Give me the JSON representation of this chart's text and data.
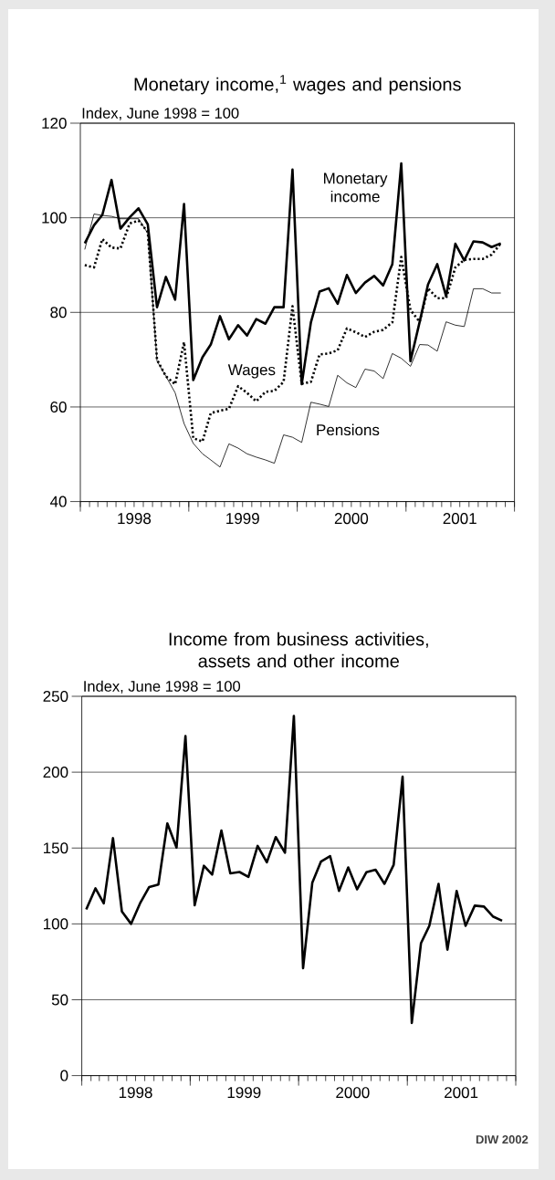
{
  "chart_data": [
    {
      "type": "line",
      "title": "Monetary income,$^{1}$ wages and pensions",
      "ylabel": "Index, June 1998 = 100",
      "x": [
        "1998-01-16",
        "1998-02-16",
        "1998-03-16",
        "1998-04-16",
        "1998-05-16",
        "1998-06-16",
        "1998-07-16",
        "1998-08-16",
        "1998-09-16",
        "1998-10-16",
        "1998-11-16",
        "1998-12-16",
        "1999-01-16",
        "1999-02-16",
        "1999-03-16",
        "1999-04-16",
        "1999-05-16",
        "1999-06-16",
        "1999-07-16",
        "1999-08-16",
        "1999-09-16",
        "1999-10-16",
        "1999-11-16",
        "1999-12-16",
        "2000-01-16",
        "2000-02-16",
        "2000-03-16",
        "2000-04-16",
        "2000-05-16",
        "2000-06-16",
        "2000-07-16",
        "2000-08-16",
        "2000-09-16",
        "2000-10-16",
        "2000-11-16",
        "2000-12-16",
        "2001-01-16",
        "2001-02-16",
        "2001-03-16",
        "2001-04-16",
        "2001-05-16",
        "2001-06-16",
        "2001-07-16",
        "2001-08-16",
        "2001-09-16",
        "2001-10-16",
        "2001-11-16"
      ],
      "series": [
        {
          "name": "Monetary income",
          "color": "#000000",
          "line_style": "solid",
          "values": [
            94.6,
            98.4,
            100.6,
            108,
            97.7,
            100.1,
            102,
            98.6,
            81.1,
            87.5,
            82.7,
            102.9,
            65.7,
            70.5,
            73.2,
            79.2,
            74.3,
            77.3,
            75.1,
            78.6,
            77.6,
            81.1,
            81.1,
            110.2,
            64.8,
            77.9,
            84.4,
            85.1,
            81.8,
            87.9,
            84.1,
            86.3,
            87.7,
            85.7,
            90.2,
            111.5,
            69.7,
            78,
            85.9,
            90.2,
            83.4,
            94.5,
            91,
            95,
            94.8,
            93.8,
            94.6
          ]
        },
        {
          "name": "Wages",
          "color": "#000000",
          "line_style": "dotted",
          "values": [
            90,
            89.5,
            95.5,
            93.7,
            93.5,
            98.8,
            99.4,
            97,
            70,
            66.5,
            64.8,
            73.7,
            53.4,
            52.7,
            58.7,
            59.2,
            59.6,
            64.4,
            63,
            61.2,
            63.2,
            63.4,
            65.3,
            81.3,
            64.9,
            65.3,
            71.1,
            71.3,
            72,
            76.6,
            75.8,
            74.8,
            75.9,
            76.3,
            77.9,
            91.7,
            80.5,
            78,
            85.1,
            83,
            83,
            89.5,
            91.1,
            91.3,
            91.3,
            92.2,
            94.6
          ]
        },
        {
          "name": "Pensions",
          "color": "#000000",
          "line_style": "solid",
          "values": [
            93.3,
            100.8,
            100.5,
            100.3,
            99.8,
            99.8,
            99.8,
            96.7,
            69.7,
            66.5,
            63,
            56.5,
            52.3,
            50.1,
            48.8,
            47.3,
            52.2,
            51.3,
            50.1,
            49.4,
            48.8,
            48.1,
            54.1,
            53.6,
            52.5,
            61,
            60.6,
            60.1,
            66.7,
            65.1,
            64.1,
            68,
            67.6,
            66,
            71.3,
            70.3,
            68.6,
            73.2,
            73.1,
            71.8,
            78,
            77.3,
            77,
            85,
            85,
            84.1,
            84.1
          ]
        }
      ],
      "xlim": [
        "1998-01-01",
        "2002-01-01"
      ],
      "xticks": [
        {
          "value": "1998-01-01",
          "label": null
        },
        {
          "value": "1998-07-01",
          "label": "1998"
        },
        {
          "value": "1999-01-01",
          "label": null
        },
        {
          "value": "1999-07-01",
          "label": "1999"
        },
        {
          "value": "2000-01-01",
          "label": null
        },
        {
          "value": "2000-07-01",
          "label": "2000"
        },
        {
          "value": "2001-01-01",
          "label": null
        },
        {
          "value": "2001-07-01",
          "label": "2001"
        },
        {
          "value": "2002-01-01",
          "label": null
        }
      ],
      "ylim": [
        40,
        120
      ],
      "yticks": [
        40,
        60,
        80,
        100,
        120
      ],
      "grid": "y"
    },
    {
      "type": "line",
      "title": "Income from business activities, assets and other income",
      "ylabel": "Index, June 1998 = 100",
      "x": [
        "1998-01-16",
        "1998-02-16",
        "1998-03-16",
        "1998-04-16",
        "1998-05-16",
        "1998-06-16",
        "1998-07-16",
        "1998-08-16",
        "1998-09-16",
        "1998-10-16",
        "1998-11-16",
        "1998-12-16",
        "1999-01-16",
        "1999-02-16",
        "1999-03-16",
        "1999-04-16",
        "1999-05-16",
        "1999-06-16",
        "1999-07-16",
        "1999-08-16",
        "1999-09-16",
        "1999-10-16",
        "1999-11-16",
        "1999-12-16",
        "2000-01-16",
        "2000-02-16",
        "2000-03-16",
        "2000-04-16",
        "2000-05-16",
        "2000-06-16",
        "2000-07-16",
        "2000-08-16",
        "2000-09-16",
        "2000-10-16",
        "2000-11-16",
        "2000-12-16",
        "2001-01-16",
        "2001-02-16",
        "2001-03-16",
        "2001-04-16",
        "2001-05-16",
        "2001-06-16",
        "2001-07-16",
        "2001-08-16",
        "2001-09-16",
        "2001-10-16",
        "2001-11-16"
      ],
      "series": [
        {
          "color": "#000000",
          "line_style": "solid",
          "values": [
            109.5,
            123.4,
            113.5,
            156.5,
            108.2,
            100,
            113.5,
            124.3,
            126,
            166.2,
            150.3,
            223.8,
            112.3,
            138.3,
            132.5,
            161.5,
            133.3,
            134.2,
            131,
            151.4,
            140.6,
            157.2,
            146.9,
            237.1,
            70.8,
            127.1,
            141,
            144.7,
            121.7,
            137.2,
            122.8,
            134,
            135.7,
            126.4,
            138.9,
            197,
            34.7,
            87.3,
            98.7,
            126.4,
            83,
            121.7,
            98.7,
            112,
            111.4,
            104.9,
            102.1
          ]
        }
      ],
      "xlim": [
        "1998-01-01",
        "2002-01-01"
      ],
      "xticks": [
        {
          "value": "1998-01-01",
          "label": null
        },
        {
          "value": "1998-07-01",
          "label": "1998"
        },
        {
          "value": "1999-01-01",
          "label": null
        },
        {
          "value": "1999-07-01",
          "label": "1999"
        },
        {
          "value": "2000-01-01",
          "label": null
        },
        {
          "value": "2000-07-01",
          "label": "2000"
        },
        {
          "value": "2001-01-01",
          "label": null
        },
        {
          "value": "2001-07-01",
          "label": "2001"
        },
        {
          "value": "2002-01-01",
          "label": null
        }
      ],
      "ylim": [
        0,
        250
      ],
      "yticks": [
        0,
        50,
        100,
        150,
        200,
        250
      ],
      "grid": "y",
      "annotations": [
        "DIW 2002"
      ]
    }
  ]
}
